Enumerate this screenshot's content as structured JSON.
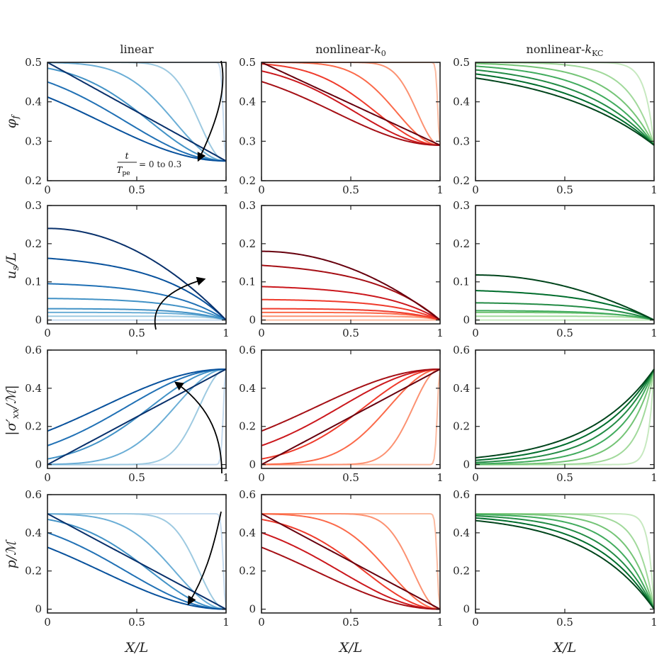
{
  "chart_data": {
    "type": "line",
    "layout": "3 columns x 4 rows of subplots",
    "columns": [
      {
        "title": "linear",
        "color_family": "blue",
        "colors": [
          "#c6dbef",
          "#9ecae1",
          "#6baed6",
          "#4292c6",
          "#2171b5",
          "#08519c",
          "#08306b"
        ]
      },
      {
        "title": "nonlinear-k₀",
        "color_family": "red",
        "colors": [
          "#fcbba1",
          "#fc9272",
          "#fb6a4a",
          "#ef3b2c",
          "#cb181d",
          "#a50f15",
          "#67000d"
        ]
      },
      {
        "title": "nonlinear-k_KC",
        "color_family": "green",
        "colors": [
          "#c7e9c0",
          "#a1d99b",
          "#74c476",
          "#41ab5d",
          "#238b45",
          "#006d2c",
          "#00441b"
        ]
      }
    ],
    "x": {
      "label": "X/L",
      "range": [
        0,
        1
      ],
      "ticks": [
        "0",
        "0.5",
        "1"
      ]
    },
    "rows": [
      {
        "ylabel": "φ_f",
        "ylim": [
          0.2,
          0.5
        ],
        "yticks": [
          "0.2",
          "0.3",
          "0.4",
          "0.5"
        ],
        "end_values": [
          0.25,
          0.29,
          0.29
        ],
        "start_value": 0.5
      },
      {
        "ylabel": "u_s/L",
        "ylim": [
          -0.01,
          0.3
        ],
        "yticks": [
          "0",
          "0.1",
          "0.2",
          "0.3"
        ],
        "max_values": [
          [
            0.0,
            0.01,
            0.02,
            0.03,
            0.058,
            0.1,
            0.175,
            0.24
          ],
          [
            0.0,
            0.01,
            0.02,
            0.03,
            0.055,
            0.092,
            0.155,
            0.18
          ],
          [
            0.0,
            0.01,
            0.02,
            0.025,
            0.047,
            0.083,
            0.118
          ]
        ]
      },
      {
        "ylabel": "|σ′_xx/ℳ|",
        "ylim": [
          -0.02,
          0.6
        ],
        "yticks": [
          "0",
          "0.2",
          "0.4",
          "0.6"
        ],
        "end_value": 0.5
      },
      {
        "ylabel": "p/ℳ",
        "ylim": [
          -0.02,
          0.6
        ],
        "yticks": [
          "0",
          "0.2",
          "0.4",
          "0.6"
        ],
        "start_value": 0.5
      }
    ],
    "time_range": {
      "variable": "t/T_pe",
      "from": 0,
      "to": 0.3
    },
    "annotation": {
      "label_num": "t",
      "label_den": "T",
      "label_den_sub": "pe",
      "label_text": "= 0 to 0.3"
    }
  },
  "labels": {
    "col0": "linear",
    "col1_main": "nonlinear-",
    "col1_k": "k",
    "col1_sub": "0",
    "col2_main": "nonlinear-",
    "col2_k": "k",
    "col2_sub": "KC",
    "y0_main": "φ",
    "y0_sub": "f",
    "y1_main": "u",
    "y1_sub": "s",
    "y1_rest": "/L",
    "y2_main": "|σ′",
    "y2_sub": "xx",
    "y2_rest": "/ℳ|",
    "y3_main": "p/ℳ",
    "xlabel": "X/L",
    "annot_num": "t",
    "annot_den": "T",
    "annot_den_sub": "pe",
    "annot_text": "= 0 to 0.3"
  }
}
